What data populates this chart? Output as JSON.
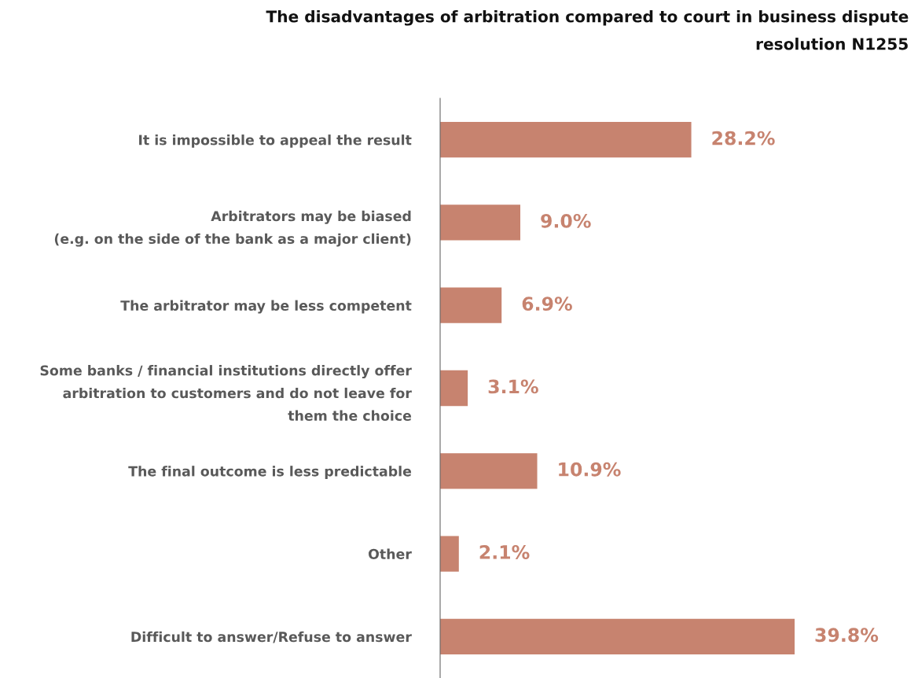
{
  "chart_data": {
    "type": "bar",
    "orientation": "horizontal",
    "title": "The disadvantages of arbitration compared to court in business dispute\nresolution N1255",
    "categories": [
      "It is impossible to appeal the result",
      "Arbitrators may be biased\n(e.g. on the side of the bank as a major client)",
      "The arbitrator may be less competent",
      "Some banks / financial institutions directly offer\narbitration to customers and do not leave for\nthem the choice",
      "The final outcome is less predictable",
      "Other",
      "Difficult to answer/Refuse to answer"
    ],
    "values": [
      28.2,
      9.0,
      6.9,
      3.1,
      10.9,
      2.1,
      39.8
    ],
    "value_labels": [
      "28.2%",
      "9.0%",
      "6.9%",
      "3.1%",
      "10.9%",
      "2.1%",
      "39.8%"
    ],
    "color": "#c7836f",
    "tick_labels": "y",
    "grid": false,
    "legend": false
  }
}
